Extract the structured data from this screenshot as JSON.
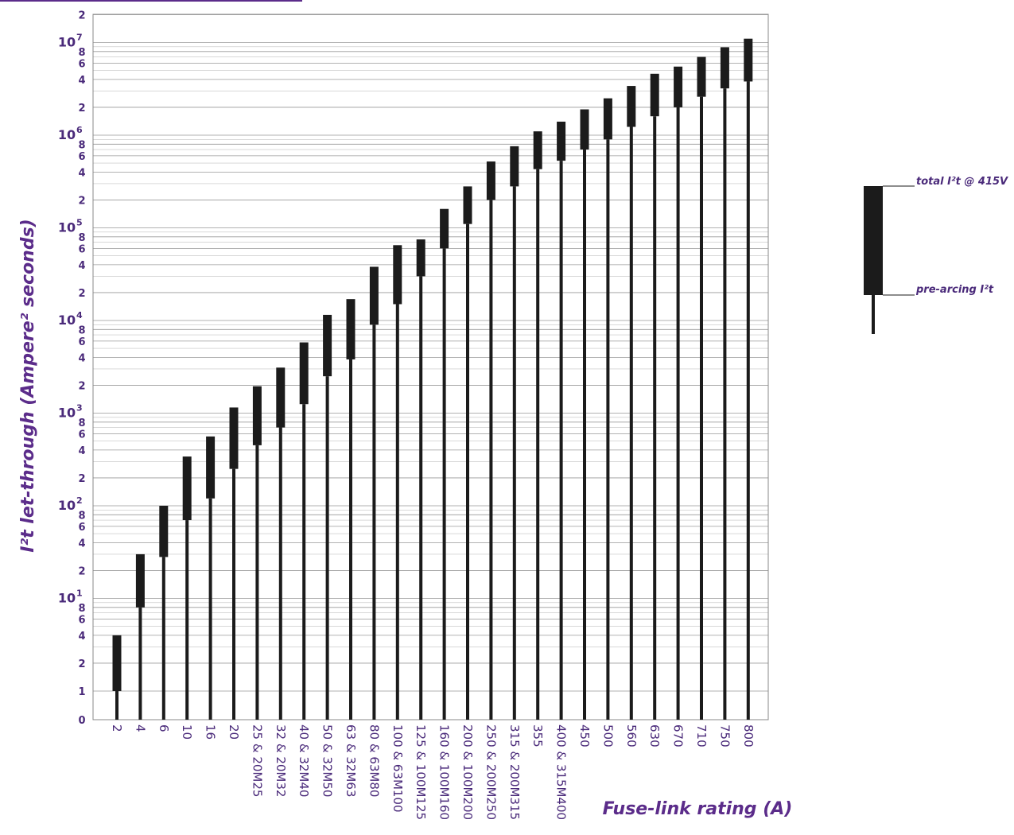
{
  "chart_data": {
    "type": "range-bar",
    "xlabel": "Fuse-link rating (A)",
    "ylabel": "I²t let-through (Ampere² seconds)",
    "y_scale": "log",
    "ylim": [
      0,
      20000000
    ],
    "y_tick_labels": [
      "0",
      "1",
      "2",
      "4",
      "6",
      "8",
      "10¹",
      "2",
      "4",
      "6",
      "8",
      "10²",
      "2",
      "4",
      "6",
      "8",
      "10³",
      "2",
      "4",
      "6",
      "8",
      "10⁴",
      "2",
      "4",
      "6",
      "8",
      "10⁵",
      "2",
      "4",
      "6",
      "8",
      "10⁶",
      "2",
      "4",
      "6",
      "8",
      "10⁷",
      "2"
    ],
    "categories": [
      "2",
      "4",
      "6",
      "10",
      "16",
      "20",
      "25 & 20M25",
      "32 & 20M32",
      "40 & 32M40",
      "50 & 32M50",
      "63 & 32M63",
      "80 & 63M80",
      "100 & 63M100",
      "125 & 100M125",
      "160 & 100M160",
      "200 & 100M200",
      "250 & 200M250",
      "315 & 200M315",
      "355",
      "400 & 315M400",
      "450",
      "500",
      "560",
      "630",
      "670",
      "710",
      "750",
      "800"
    ],
    "series": [
      {
        "name": "pre-arcing I²t",
        "values": [
          1,
          8,
          28,
          70,
          120,
          250,
          450,
          700,
          1250,
          2500,
          3800,
          9000,
          15000,
          30000,
          60000,
          110000,
          200000,
          280000,
          430000,
          530000,
          700000,
          900000,
          1230000,
          1600000,
          2000000,
          2600000,
          3200000,
          3800000
        ]
      },
      {
        "name": "total I²t @ 415V",
        "values": [
          4,
          30,
          100,
          340,
          560,
          1150,
          1950,
          3100,
          5800,
          11500,
          17000,
          38000,
          65000,
          75000,
          160000,
          280000,
          520000,
          760000,
          1100000,
          1400000,
          1900000,
          2500000,
          3400000,
          4600000,
          5500000,
          7000000,
          8900000,
          11000000
        ]
      }
    ],
    "grid": true,
    "legend_position": "right"
  },
  "legend": {
    "total_label": "total I²t @ 415V",
    "pre_label": "pre-arcing I²t"
  },
  "colors": {
    "bar": "#1b1b1b",
    "text": "#4a2a7a",
    "title": "#5b2c8a",
    "grid_major": "#999999",
    "grid_minor": "#c2c2c2"
  }
}
